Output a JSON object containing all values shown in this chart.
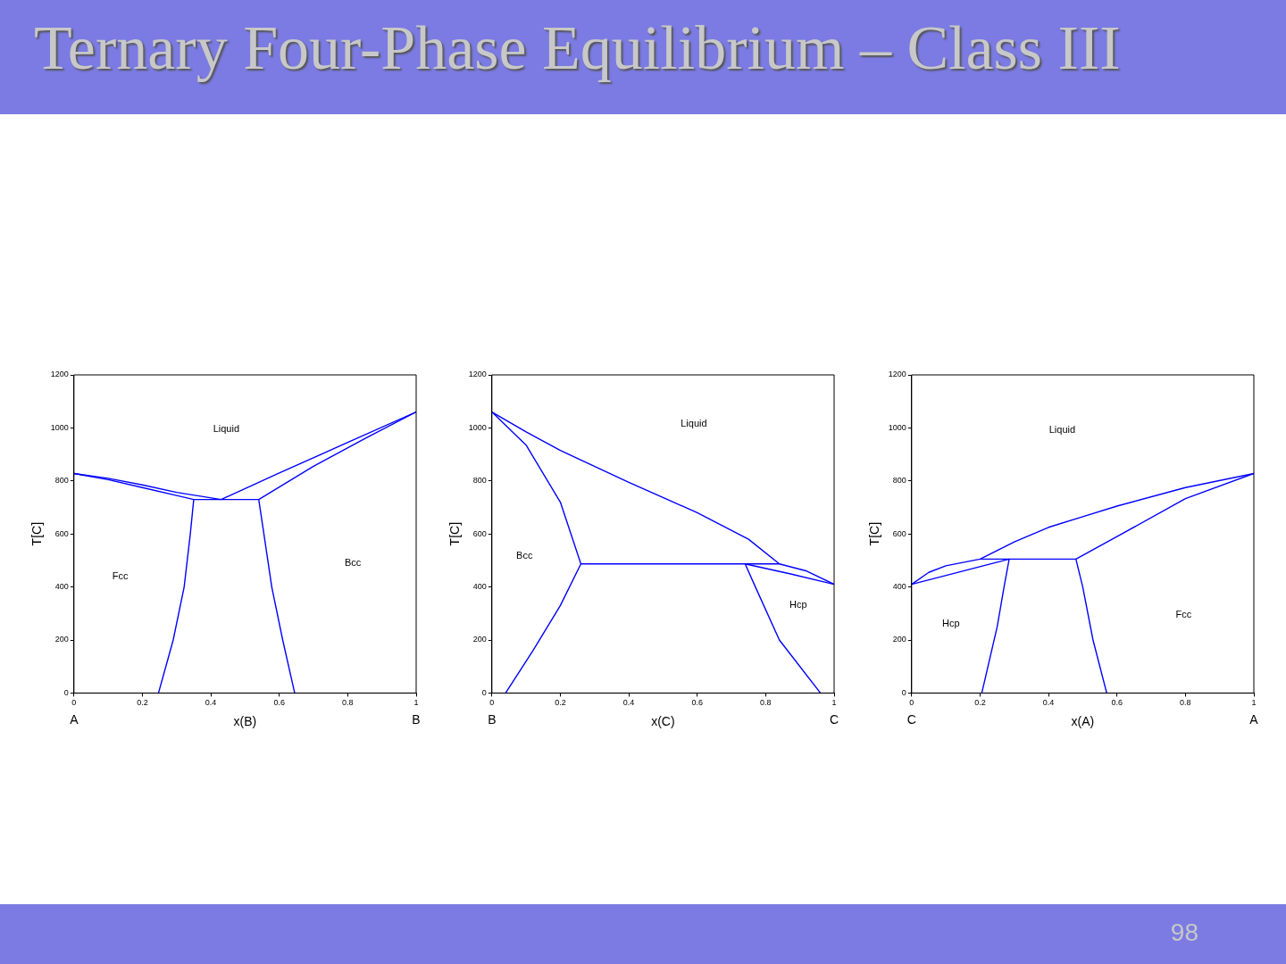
{
  "chart_data": [
    {
      "type": "line",
      "title": "Ternary Four-Phase Equilibrium – Class III",
      "xlabel": "x(B)",
      "ylabel": "T[C]",
      "xlim": [
        0,
        1
      ],
      "ylim": [
        0,
        1200
      ],
      "xticks": [
        0,
        0.2,
        0.4,
        0.6,
        0.8,
        1
      ],
      "yticks": [
        0,
        200,
        400,
        600,
        800,
        1000,
        1200
      ],
      "marker": "none",
      "line_style": "solid",
      "series": [
        {
          "color": "#0000ff",
          "x": [
            0,
            0.1,
            0.2,
            0.3,
            0.43,
            0.6,
            0.8,
            1
          ],
          "values": [
            828,
            810,
            785,
            757,
            730,
            830,
            945,
            1060
          ]
        },
        {
          "color": "#0000ff",
          "x": [
            0.247,
            0.29,
            0.322,
            0.34,
            0.35,
            0.3,
            0.2,
            0.1,
            0
          ],
          "values": [
            0,
            200,
            400,
            600,
            730,
            745,
            775,
            805,
            828
          ]
        },
        {
          "color": "#0000ff",
          "x": [
            0.35,
            0.54
          ],
          "values": [
            730,
            730
          ]
        },
        {
          "color": "#0000ff",
          "x": [
            0.645,
            0.61,
            0.578,
            0.555,
            0.54,
            0.7,
            0.85,
            1
          ],
          "values": [
            0,
            200,
            400,
            600,
            730,
            855,
            960,
            1060
          ]
        }
      ],
      "annotations": [
        "Liquid",
        "Fcc",
        "Bcc",
        "A",
        "B"
      ]
    },
    {
      "type": "line",
      "xlabel": "x(C)",
      "ylabel": "T[C]",
      "xlim": [
        0,
        1
      ],
      "ylim": [
        0,
        1200
      ],
      "xticks": [
        0,
        0.2,
        0.4,
        0.6,
        0.8,
        1
      ],
      "yticks": [
        0,
        200,
        400,
        600,
        800,
        1000,
        1200
      ],
      "marker": "none",
      "line_style": "solid",
      "series": [
        {
          "color": "#0000ff",
          "x": [
            0,
            0.1,
            0.2,
            0.4,
            0.6,
            0.75,
            0.84,
            0.92,
            1
          ],
          "values": [
            1060,
            985,
            915,
            795,
            680,
            580,
            487,
            460,
            410
          ]
        },
        {
          "color": "#0000ff",
          "x": [
            0.04,
            0.12,
            0.2,
            0.26,
            0.2,
            0.1,
            0
          ],
          "values": [
            0,
            160,
            330,
            487,
            720,
            935,
            1060
          ]
        },
        {
          "color": "#0000ff",
          "x": [
            0.26,
            0.84
          ],
          "values": [
            487,
            487
          ]
        },
        {
          "color": "#0000ff",
          "x": [
            0.96,
            0.84,
            0.77,
            0.74,
            0.87,
            1
          ],
          "values": [
            0,
            200,
            400,
            487,
            450,
            410
          ]
        }
      ],
      "annotations": [
        "Liquid",
        "Bcc",
        "Hcp",
        "B",
        "C"
      ]
    },
    {
      "type": "line",
      "xlabel": "x(A)",
      "ylabel": "T[C]",
      "xlim": [
        0,
        1
      ],
      "ylim": [
        0,
        1200
      ],
      "xticks": [
        0,
        0.2,
        0.4,
        0.6,
        0.8,
        1
      ],
      "yticks": [
        0,
        200,
        400,
        600,
        800,
        1000,
        1200
      ],
      "marker": "none",
      "line_style": "solid",
      "series": [
        {
          "color": "#0000ff",
          "x": [
            0,
            0.05,
            0.1,
            0.2,
            0.3,
            0.4,
            0.5,
            0.6,
            0.8,
            1
          ],
          "values": [
            410,
            455,
            480,
            505,
            570,
            625,
            665,
            705,
            775,
            828
          ]
        },
        {
          "color": "#0000ff",
          "x": [
            0.205,
            0.25,
            0.27,
            0.285,
            0
          ],
          "values": [
            0,
            250,
            400,
            505,
            410
          ]
        },
        {
          "color": "#0000ff",
          "x": [
            0.2,
            0.48
          ],
          "values": [
            505,
            505
          ]
        },
        {
          "color": "#0000ff",
          "x": [
            0.57,
            0.53,
            0.5,
            0.48,
            0.6,
            0.8,
            1
          ],
          "values": [
            0,
            200,
            400,
            505,
            590,
            733,
            828
          ]
        }
      ],
      "annotations": [
        "Liquid",
        "Hcp",
        "Fcc",
        "C",
        "A",
        "98"
      ]
    }
  ]
}
